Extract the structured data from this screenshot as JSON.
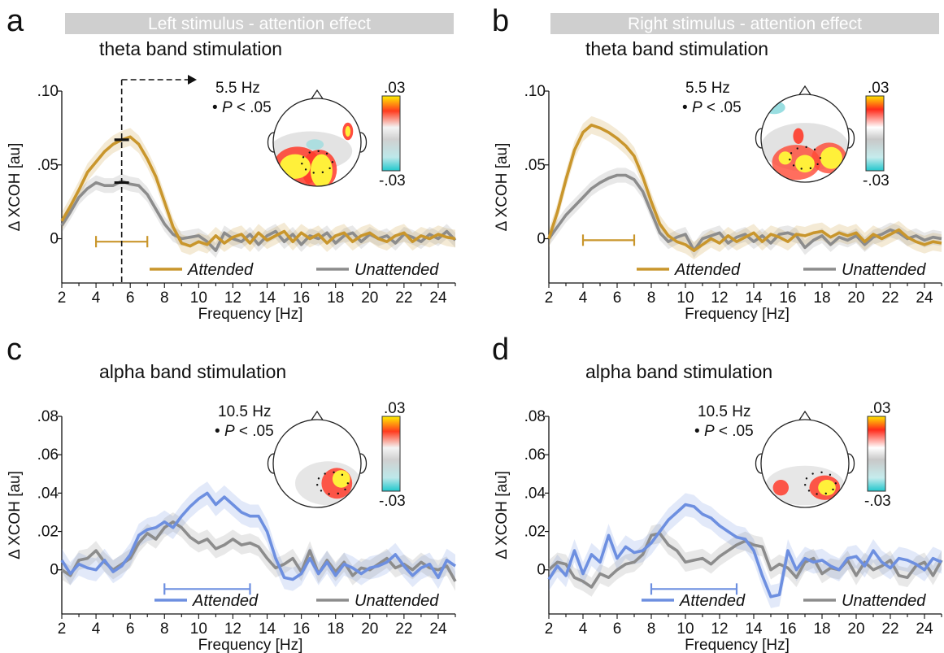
{
  "colors": {
    "attended_theta": "#c9962c",
    "attended_alpha": "#6d8fe0",
    "unattended": "#8c8c8c",
    "banner": "#cfcfcf"
  },
  "chart_data": [
    {
      "id": "a",
      "type": "line",
      "panel_label": "a",
      "banner": "Left stimulus  - attention effect",
      "title": "theta band stimulation",
      "xlabel": "Frequency [Hz]",
      "ylabel": "Δ XCOH [au]",
      "xlim": [
        2,
        25
      ],
      "ylim": [
        -0.03,
        0.1
      ],
      "xticks": [
        2,
        4,
        6,
        8,
        10,
        12,
        14,
        16,
        18,
        20,
        22,
        24
      ],
      "yticks": [
        0,
        0.05,
        0.1
      ],
      "yticklabels": [
        "0",
        ".05",
        ".10"
      ],
      "annotation_freq": "5.5 Hz",
      "annotation_p": "P < .05",
      "colorbar": {
        "max_label": ".03",
        "min_label": "-.03"
      },
      "attend_color": "attended_theta",
      "freq_marker": {
        "x": 5.5,
        "y_attended": 0.067,
        "y_unattended": 0.038
      },
      "sig_range": [
        4,
        7
      ],
      "sig_y": -0.002,
      "x": [
        2,
        2.5,
        3,
        3.5,
        4,
        4.5,
        5,
        5.5,
        6,
        6.5,
        7,
        7.5,
        8,
        8.5,
        9,
        9.5,
        10,
        10.5,
        11,
        11.5,
        12,
        12.5,
        13,
        13.5,
        14,
        14.5,
        15,
        15.5,
        16,
        16.5,
        17,
        17.5,
        18,
        18.5,
        19,
        19.5,
        20,
        20.5,
        21,
        21.5,
        22,
        22.5,
        23,
        23.5,
        24,
        24.5,
        25
      ],
      "series": [
        {
          "name": "Attended",
          "values": [
            0.012,
            0.022,
            0.033,
            0.045,
            0.052,
            0.059,
            0.064,
            0.067,
            0.069,
            0.064,
            0.054,
            0.042,
            0.025,
            0.008,
            -0.003,
            -0.005,
            -0.002,
            -0.004,
            0.002,
            -0.003,
            0.001,
            0.003,
            -0.003,
            0.004,
            -0.001,
            0.002,
            0.005,
            -0.002,
            0.004,
            0.0,
            0.003,
            -0.003,
            0.002,
            0.004,
            -0.002,
            0.002,
            0.004,
            0.0,
            -0.002,
            0.002,
            0.004,
            -0.002,
            0.002,
            0.0,
            0.003,
            0.001,
            0.0
          ]
        },
        {
          "name": "Unattended",
          "values": [
            0.009,
            0.018,
            0.028,
            0.034,
            0.038,
            0.036,
            0.036,
            0.039,
            0.037,
            0.036,
            0.03,
            0.02,
            0.01,
            0.003,
            0.0,
            0.001,
            0.002,
            -0.002,
            -0.008,
            0.004,
            0.0,
            -0.002,
            0.003,
            -0.004,
            0.002,
            0.005,
            -0.002,
            0.003,
            -0.004,
            0.002,
            0.0,
            0.004,
            -0.003,
            0.002,
            0.004,
            -0.002,
            0.003,
            0.0,
            0.002,
            -0.003,
            0.003,
            0.001,
            -0.002,
            0.003,
            0.0,
            0.005,
            -0.001
          ]
        }
      ]
    },
    {
      "id": "b",
      "type": "line",
      "panel_label": "b",
      "banner": "Right stimulus - attention effect",
      "title": "theta band stimulation",
      "xlabel": "Frequency [Hz]",
      "ylabel": "Δ XCOH [au]",
      "xlim": [
        2,
        25
      ],
      "ylim": [
        -0.03,
        0.1
      ],
      "xticks": [
        2,
        4,
        6,
        8,
        10,
        12,
        14,
        16,
        18,
        20,
        22,
        24
      ],
      "yticks": [
        0,
        0.05,
        0.1
      ],
      "yticklabels": [
        "0",
        ".05",
        ".10"
      ],
      "annotation_freq": "5.5 Hz",
      "annotation_p": "P < .05",
      "colorbar": {
        "max_label": ".03",
        "min_label": "-.03"
      },
      "attend_color": "attended_theta",
      "sig_range": [
        4,
        7
      ],
      "sig_y": -0.001,
      "x": [
        2,
        2.5,
        3,
        3.5,
        4,
        4.5,
        5,
        5.5,
        6,
        6.5,
        7,
        7.5,
        8,
        8.5,
        9,
        9.5,
        10,
        10.5,
        11,
        11.5,
        12,
        12.5,
        13,
        13.5,
        14,
        14.5,
        15,
        15.5,
        16,
        16.5,
        17,
        17.5,
        18,
        18.5,
        19,
        19.5,
        20,
        20.5,
        21,
        21.5,
        22,
        22.5,
        23,
        23.5,
        24,
        24.5,
        25
      ],
      "series": [
        {
          "name": "Attended",
          "values": [
            0.0,
            0.018,
            0.04,
            0.06,
            0.072,
            0.077,
            0.075,
            0.072,
            0.068,
            0.063,
            0.056,
            0.042,
            0.025,
            0.01,
            0.002,
            -0.002,
            -0.004,
            -0.008,
            -0.004,
            0.0,
            -0.003,
            0.002,
            -0.002,
            0.001,
            0.004,
            -0.002,
            0.003,
            0.001,
            -0.002,
            0.003,
            0.002,
            0.004,
            0.005,
            0.001,
            0.004,
            0.002,
            0.004,
            -0.002,
            0.003,
            0.0,
            0.003,
            0.006,
            0.001,
            -0.002,
            -0.004,
            -0.002,
            -0.003
          ]
        },
        {
          "name": "Unattended",
          "values": [
            0.0,
            0.008,
            0.016,
            0.022,
            0.028,
            0.034,
            0.038,
            0.041,
            0.043,
            0.043,
            0.04,
            0.032,
            0.018,
            0.004,
            -0.002,
            0.001,
            0.003,
            -0.008,
            0.0,
            0.002,
            0.004,
            -0.003,
            0.001,
            0.003,
            -0.002,
            0.002,
            -0.003,
            0.003,
            0.004,
            0.002,
            -0.006,
            -0.001,
            0.002,
            -0.004,
            0.001,
            -0.001,
            0.002,
            -0.004,
            0.001,
            0.003,
            0.006,
            0.004,
            0.0,
            0.002,
            -0.001,
            0.001,
            0.0
          ]
        }
      ]
    },
    {
      "id": "c",
      "type": "line",
      "panel_label": "c",
      "banner": "",
      "title": "alpha band stimulation",
      "xlabel": "Frequency [Hz]",
      "ylabel": "Δ XCOH [au]",
      "xlim": [
        2,
        25
      ],
      "ylim": [
        -0.023,
        0.08
      ],
      "xticks": [
        2,
        4,
        6,
        8,
        10,
        12,
        14,
        16,
        18,
        20,
        22,
        24
      ],
      "yticks": [
        0,
        0.02,
        0.04,
        0.06,
        0.08
      ],
      "yticklabels": [
        "0",
        ".02",
        ".04",
        ".06",
        ".08"
      ],
      "annotation_freq": "10.5 Hz",
      "annotation_p": "P < .05",
      "colorbar": {
        "max_label": ".03",
        "min_label": "-.03"
      },
      "attend_color": "attended_alpha",
      "sig_range": [
        8,
        13
      ],
      "sig_y": -0.01,
      "x": [
        2,
        2.5,
        3,
        3.5,
        4,
        4.5,
        5,
        5.5,
        6,
        6.5,
        7,
        7.5,
        8,
        8.5,
        9,
        9.5,
        10,
        10.5,
        11,
        11.5,
        12,
        12.5,
        13,
        13.5,
        14,
        14.5,
        15,
        15.5,
        16,
        16.5,
        17,
        17.5,
        18,
        18.5,
        19,
        19.5,
        20,
        20.5,
        21,
        21.5,
        22,
        22.5,
        23,
        23.5,
        24,
        24.5,
        25
      ],
      "series": [
        {
          "name": "Attended",
          "values": [
            0.005,
            -0.002,
            0.003,
            0.001,
            0.0,
            0.005,
            -0.001,
            0.002,
            0.008,
            0.018,
            0.021,
            0.022,
            0.025,
            0.022,
            0.028,
            0.033,
            0.037,
            0.04,
            0.034,
            0.038,
            0.034,
            0.03,
            0.028,
            0.028,
            0.02,
            0.006,
            -0.004,
            -0.005,
            -0.002,
            0.006,
            -0.002,
            0.004,
            -0.003,
            0.003,
            0.001,
            -0.002,
            0.001,
            0.002,
            0.004,
            0.008,
            0.002,
            -0.003,
            0.001,
            0.003,
            -0.004,
            0.005,
            0.002
          ]
        },
        {
          "name": "Unattended",
          "values": [
            0.0,
            -0.003,
            0.005,
            0.006,
            0.01,
            0.004,
            0.0,
            0.003,
            0.006,
            0.014,
            0.019,
            0.016,
            0.022,
            0.025,
            0.022,
            0.017,
            0.014,
            0.016,
            0.011,
            0.013,
            0.016,
            0.013,
            0.014,
            0.012,
            0.006,
            0.001,
            0.003,
            0.006,
            -0.001,
            0.01,
            -0.002,
            0.005,
            -0.001,
            0.004,
            -0.003,
            0.001,
            0.0,
            0.003,
            0.006,
            0.001,
            0.003,
            0.0,
            0.004,
            0.001,
            0.0,
            0.002,
            -0.006
          ]
        }
      ]
    },
    {
      "id": "d",
      "type": "line",
      "panel_label": "d",
      "banner": "",
      "title": "alpha band stimulation",
      "xlabel": "Frequency [Hz]",
      "ylabel": "Δ XCOH [au]",
      "xlim": [
        2,
        25
      ],
      "ylim": [
        -0.023,
        0.08
      ],
      "xticks": [
        2,
        4,
        6,
        8,
        10,
        12,
        14,
        16,
        18,
        20,
        22,
        24
      ],
      "yticks": [
        0,
        0.02,
        0.04,
        0.06,
        0.08
      ],
      "yticklabels": [
        "0",
        ".02",
        ".04",
        ".06",
        ".08"
      ],
      "annotation_freq": "10.5 Hz",
      "annotation_p": "P < .05",
      "colorbar": {
        "max_label": ".03",
        "min_label": "-.03"
      },
      "attend_color": "attended_alpha",
      "sig_range": [
        8,
        13
      ],
      "sig_y": -0.01,
      "x": [
        2,
        2.5,
        3,
        3.5,
        4,
        4.5,
        5,
        5.5,
        6,
        6.5,
        7,
        7.5,
        8,
        8.5,
        9,
        9.5,
        10,
        10.5,
        11,
        11.5,
        12,
        12.5,
        13,
        13.5,
        14,
        14.5,
        15,
        15.5,
        16,
        16.5,
        17,
        17.5,
        18,
        18.5,
        19,
        19.5,
        20,
        20.5,
        21,
        21.5,
        22,
        22.5,
        23,
        23.5,
        24,
        24.5,
        25
      ],
      "series": [
        {
          "name": "Attended",
          "values": [
            -0.005,
            0.002,
            -0.003,
            0.01,
            -0.002,
            0.008,
            0.004,
            0.018,
            0.006,
            0.012,
            0.009,
            0.01,
            0.014,
            0.02,
            0.026,
            0.03,
            0.034,
            0.033,
            0.029,
            0.027,
            0.023,
            0.02,
            0.017,
            0.016,
            0.01,
            -0.003,
            -0.014,
            -0.013,
            0.01,
            0.0,
            0.006,
            0.004,
            0.005,
            0.002,
            0.0,
            0.006,
            0.007,
            0.002,
            0.01,
            0.004,
            0.001,
            0.006,
            0.005,
            0.003,
            0.0,
            0.006,
            0.004
          ]
        },
        {
          "name": "Unattended",
          "values": [
            0.0,
            0.004,
            0.003,
            -0.004,
            -0.006,
            -0.009,
            -0.002,
            -0.004,
            0.0,
            0.003,
            0.004,
            0.008,
            0.018,
            0.019,
            0.013,
            0.01,
            0.004,
            0.005,
            0.006,
            0.003,
            0.007,
            0.01,
            0.013,
            0.015,
            0.013,
            0.012,
            0.0,
            0.003,
            0.001,
            -0.004,
            0.004,
            0.006,
            -0.002,
            0.001,
            0.0,
            0.005,
            -0.003,
            0.004,
            0.0,
            0.002,
            0.005,
            -0.003,
            -0.004,
            0.002,
            0.004,
            -0.003,
            0.005
          ]
        }
      ]
    }
  ]
}
